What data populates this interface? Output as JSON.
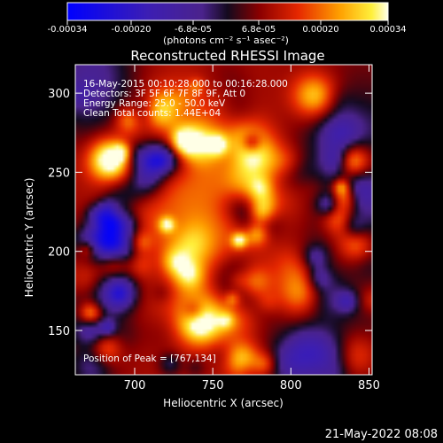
{
  "colorbar": {
    "tick_labels": [
      "-0.00034",
      "-0.00020",
      "-6.8e-05",
      "6.8e-05",
      "0.00020",
      "0.00034"
    ],
    "unit_label": "(photons cm⁻² s⁻¹ asec⁻²)",
    "range": [
      -0.00034,
      0.00034
    ]
  },
  "chart_data": {
    "type": "heatmap",
    "title": "Reconstructed RHESSI Image",
    "xlabel": "Heliocentric X (arcsec)",
    "ylabel": "Heliocentric Y (arcsec)",
    "xlim": [
      662,
      852
    ],
    "ylim": [
      122,
      318
    ],
    "x_ticks": [
      700,
      750,
      800,
      850
    ],
    "y_ticks": [
      150,
      200,
      250,
      300
    ],
    "annotations": [
      "16-May-2015 00:10:28.000 to 00:16:28.000",
      "Detectors: 3F 5F 6F 7F 8F 9F, Att 0",
      "Energy Range: 25.0 - 50.0 keV",
      "Clean    Total counts: 1.44E+04",
      "Position of Peak = [767,134]"
    ],
    "peak": [
      767,
      134
    ],
    "intensity_unit": "photons cm^-2 s^-1 asec^-2"
  },
  "footer": {
    "timestamp": "21-May-2022 08:08"
  }
}
